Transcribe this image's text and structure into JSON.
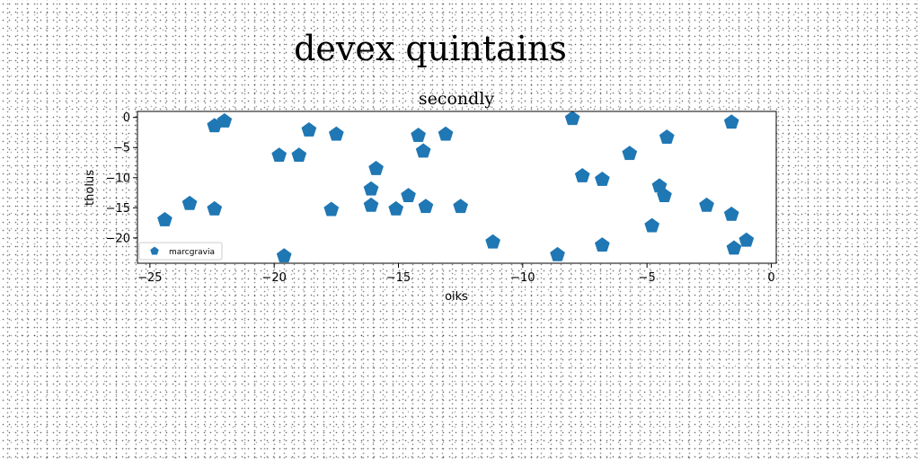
{
  "chart_data": {
    "type": "scatter",
    "suptitle": "devex quintains",
    "title": "secondly",
    "xlabel": "oiks",
    "ylabel": "tholus",
    "xlim": [
      -25.5,
      0.2
    ],
    "ylim": [
      -24.2,
      1.0
    ],
    "xticks": [
      -25,
      -20,
      -15,
      -10,
      -5,
      0
    ],
    "yticks": [
      0,
      -5,
      -10,
      -15,
      -20
    ],
    "xtick_labels": [
      "−25",
      "−20",
      "−15",
      "−10",
      "−5",
      "0"
    ],
    "ytick_labels": [
      "0",
      "−5",
      "−10",
      "−15",
      "−20"
    ],
    "grid": false,
    "legend_position": "lower-left",
    "marker": "pentagon",
    "color": "#1f77b4",
    "series": [
      {
        "name": "marcgravia",
        "points": [
          {
            "x": -24.4,
            "y": -17.0
          },
          {
            "x": -23.4,
            "y": -14.3
          },
          {
            "x": -22.4,
            "y": -15.2
          },
          {
            "x": -22.4,
            "y": -1.4
          },
          {
            "x": -22.0,
            "y": -0.6
          },
          {
            "x": -19.8,
            "y": -6.3
          },
          {
            "x": -19.6,
            "y": -23.0
          },
          {
            "x": -19.0,
            "y": -6.3
          },
          {
            "x": -18.6,
            "y": -2.1
          },
          {
            "x": -17.7,
            "y": -15.3
          },
          {
            "x": -17.5,
            "y": -2.8
          },
          {
            "x": -16.1,
            "y": -14.6
          },
          {
            "x": -16.1,
            "y": -11.9
          },
          {
            "x": -15.9,
            "y": -8.5
          },
          {
            "x": -15.1,
            "y": -15.2
          },
          {
            "x": -14.6,
            "y": -13.0
          },
          {
            "x": -14.2,
            "y": -3.0
          },
          {
            "x": -14.0,
            "y": -5.6
          },
          {
            "x": -13.9,
            "y": -14.8
          },
          {
            "x": -13.1,
            "y": -2.8
          },
          {
            "x": -12.5,
            "y": -14.8
          },
          {
            "x": -11.2,
            "y": -20.7
          },
          {
            "x": -8.6,
            "y": -22.8
          },
          {
            "x": -8.0,
            "y": -0.2
          },
          {
            "x": -7.6,
            "y": -9.7
          },
          {
            "x": -6.8,
            "y": -21.2
          },
          {
            "x": -6.8,
            "y": -10.3
          },
          {
            "x": -5.7,
            "y": -6.0
          },
          {
            "x": -4.8,
            "y": -18.0
          },
          {
            "x": -4.5,
            "y": -11.4
          },
          {
            "x": -4.3,
            "y": -13.0
          },
          {
            "x": -4.2,
            "y": -3.3
          },
          {
            "x": -2.6,
            "y": -14.6
          },
          {
            "x": -1.6,
            "y": -16.1
          },
          {
            "x": -1.6,
            "y": -0.8
          },
          {
            "x": -1.5,
            "y": -21.7
          },
          {
            "x": -1.0,
            "y": -20.4
          }
        ]
      }
    ]
  }
}
